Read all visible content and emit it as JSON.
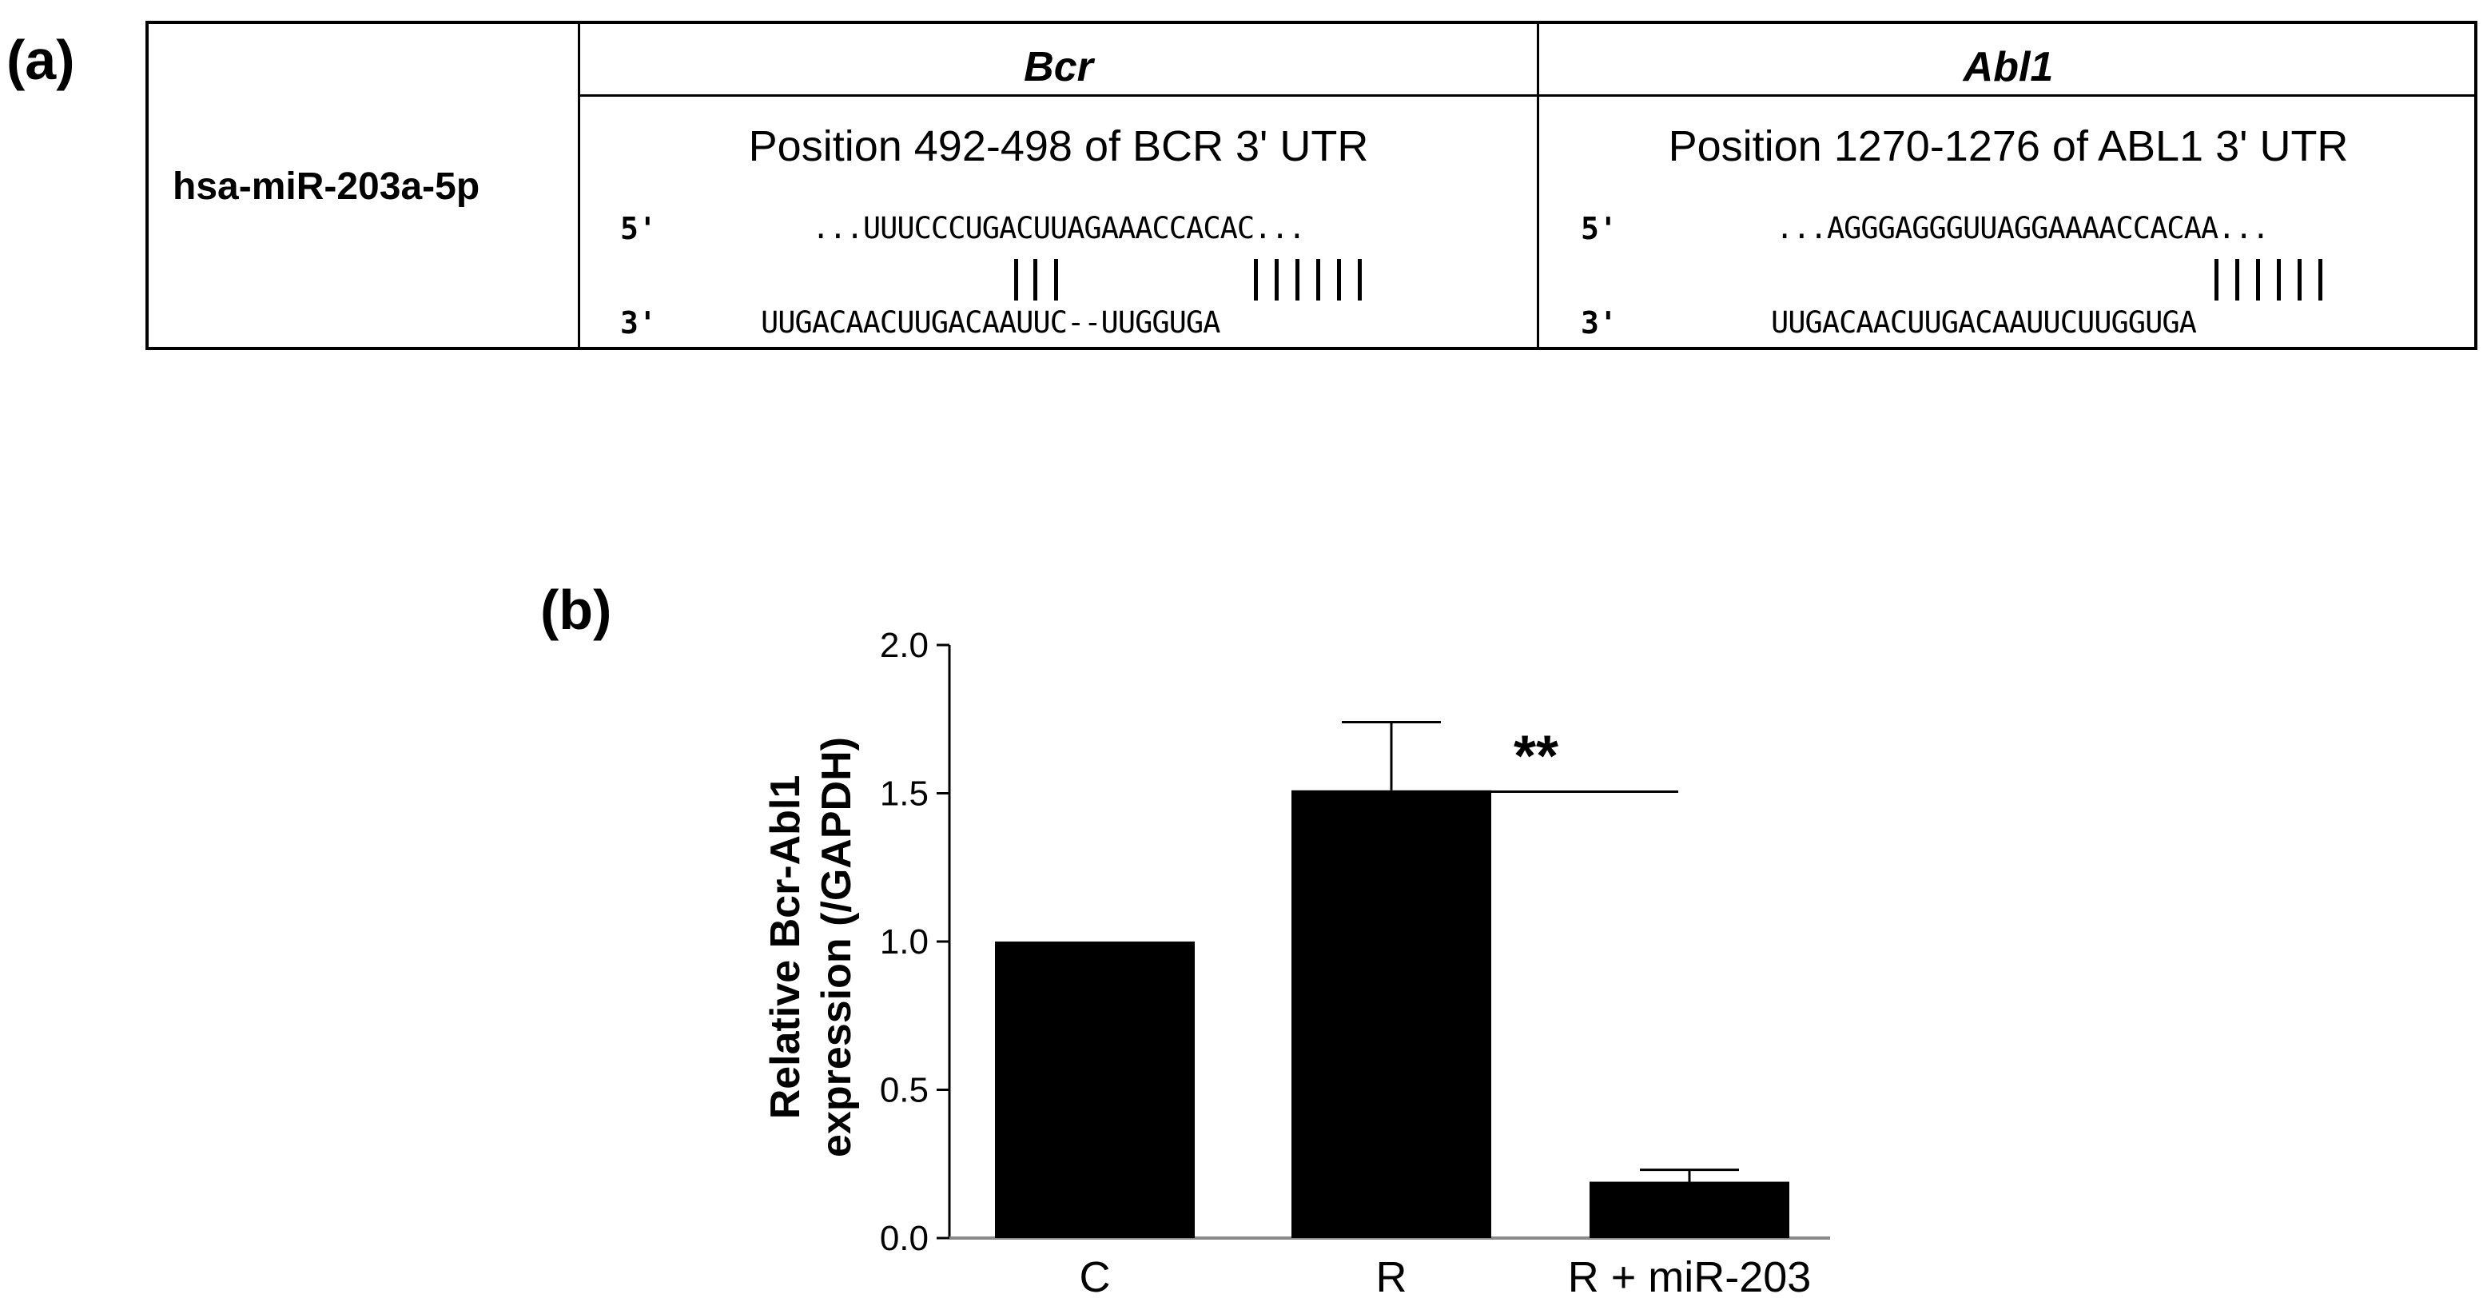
{
  "panel_a": {
    "label": "(a)",
    "mirna": "hsa-miR-203a-5p",
    "targets": [
      {
        "gene": "Bcr",
        "position_text": "Position 492-498 of BCR 3' UTR",
        "five_prime": "5'",
        "three_prime": "3'",
        "target_seq": "...UUUCCCUGACUUAGAAACCACAC...",
        "mirna_seq": "UUGACAACUUGACAAUUC--UUGGUGA"
      },
      {
        "gene": "Abl1",
        "position_text": "Position 1270-1276 of ABL1 3' UTR",
        "five_prime": "5'",
        "three_prime": "3'",
        "target_seq": "...AGGGAGGGUUAGGAAAACCACAA...",
        "mirna_seq": "UUGACAACUUGACAAUUCUUGGUGA"
      }
    ]
  },
  "panel_b": {
    "label": "(b)",
    "significance": "**"
  },
  "chart_data": {
    "type": "bar",
    "categories": [
      "C",
      "R",
      "R + miR-203"
    ],
    "values": [
      1.0,
      1.51,
      0.19
    ],
    "error_upper": [
      0.0,
      0.23,
      0.04
    ],
    "ylabel_line1": "Relative Bcr-Abl1",
    "ylabel_line2": "expression (/GAPDH)",
    "ylim": [
      0,
      2.0
    ],
    "yticks": [
      "0.0",
      "0.5",
      "1.0",
      "1.5",
      "2.0"
    ],
    "bar_color": "#000000",
    "grid": false
  }
}
